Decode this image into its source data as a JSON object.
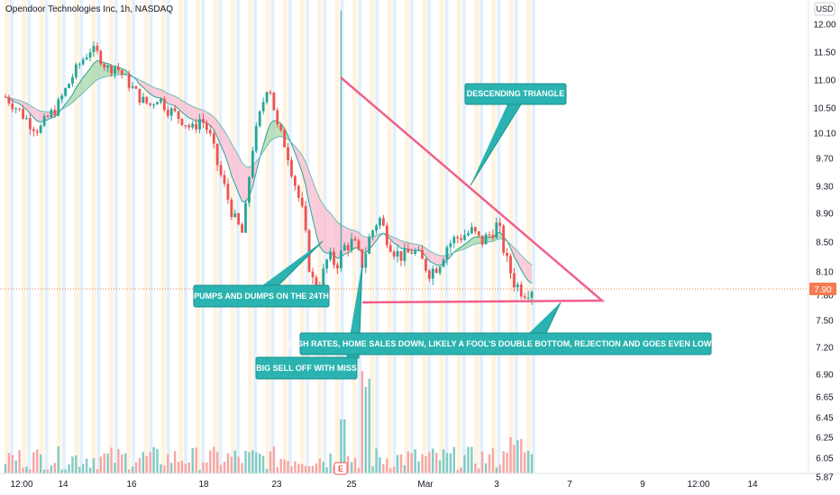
{
  "header": {
    "title": "Opendoor Technologies Inc, 1h, NASDAQ",
    "currency": "USD"
  },
  "colors": {
    "up": "#26a69a",
    "down": "#ef5350",
    "pattern_line": "#f0608a",
    "callout_fill": "#2ab3b0",
    "callout_stroke": "#1b8f8c",
    "last_price_bg": "#f57c52",
    "session_pre": "#fff3e0",
    "session_post": "#e3f0fc",
    "ema_fast": "#26a69a",
    "ema_slow": "#ef9a9a",
    "ribbon_bull": "#a5d6a7",
    "ribbon_bear": "#f8bbd0"
  },
  "chart_data": {
    "type": "candlestick",
    "title": "Opendoor Technologies Inc, 1h, NASDAQ",
    "y_axis": {
      "position": "right",
      "ticks": [
        "12.00",
        "11.50",
        "11.00",
        "10.50",
        "10.10",
        "9.70",
        "9.30",
        "8.90",
        "8.50",
        "8.10",
        "7.80",
        "7.50",
        "7.20",
        "6.90",
        "6.65",
        "6.45",
        "6.25",
        "6.05",
        "5.87"
      ],
      "scale": "log"
    },
    "x_axis": {
      "ticks": [
        "12:00",
        "14",
        "16",
        "18",
        "23",
        "25",
        "Mar",
        "3",
        "7",
        "9",
        "12:00",
        "14"
      ]
    },
    "last_price": "7.90",
    "price_path": [
      10.7,
      10.55,
      10.4,
      10.25,
      10.15,
      10.35,
      10.5,
      10.8,
      11.1,
      11.35,
      11.55,
      11.45,
      11.2,
      11.25,
      11.05,
      10.85,
      10.65,
      10.55,
      10.7,
      10.5,
      10.4,
      10.3,
      10.15,
      10.35,
      10.1,
      9.6,
      9.2,
      8.8,
      8.6,
      9.8,
      10.4,
      11.0,
      10.2,
      9.9,
      9.4,
      8.9,
      8.0,
      7.9,
      8.3,
      8.2,
      8.45,
      8.5,
      8.2,
      8.6,
      8.85,
      8.55,
      8.35,
      8.3,
      8.4,
      8.25,
      8.1,
      8.2,
      8.45,
      8.55,
      8.6,
      8.65,
      8.5,
      8.6,
      8.75,
      8.25,
      7.95,
      7.85,
      7.9
    ],
    "events": [
      "E"
    ],
    "annotations": [
      "DESCENDING TRIANGLE",
      "PUMPS AND DUMPS ON THE 24TH",
      "BIG SELL OFF WITH MISS",
      "HIGH RATES, HOME SALES DOWN, LIKELY A FOOL'S DOUBLE BOTTOM, REJECTION AND GOES EVEN LOWER"
    ]
  }
}
